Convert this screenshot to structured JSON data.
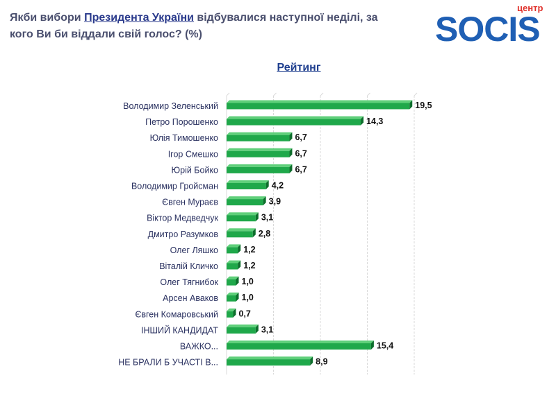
{
  "header": {
    "question_pre": "Якби вибори ",
    "question_link": "Президента України",
    "question_post": " відбувалися наступної неділі, за кого Ви би віддали свій голос? (%)"
  },
  "logo": {
    "small_text": "центр",
    "brand_text": "SOCIS",
    "colors": {
      "brand": "#1f5fb4",
      "accent": "#e0312b"
    }
  },
  "chart_data": {
    "type": "bar",
    "orientation": "horizontal",
    "title": "Рейтинг",
    "categories": [
      "Володимир Зеленський",
      "Петро Порошенко",
      "Юлія Тимошенко",
      "Ігор Смешко",
      "Юрій Бойко",
      "Володимир Гройсман",
      "Євген Мураєв",
      "Віктор Медведчук",
      "Дмитро Разумков",
      "Олег Ляшко",
      "Віталій Кличко",
      "Олег Тягнибок",
      "Арсен Аваков",
      "Євген Комаровський",
      "ІНШИЙ КАНДИДАТ",
      "ВАЖКО...",
      "НЕ БРАЛИ Б УЧАСТІ В..."
    ],
    "values": [
      19.5,
      14.3,
      6.7,
      6.7,
      6.7,
      4.2,
      3.9,
      3.1,
      2.8,
      1.2,
      1.2,
      1.0,
      1.0,
      0.7,
      3.1,
      15.4,
      8.9
    ],
    "value_labels": [
      "19,5",
      "14,3",
      "6,7",
      "6,7",
      "6,7",
      "4,2",
      "3,9",
      "3,1",
      "2,8",
      "1,2",
      "1,2",
      "1,0",
      "1,0",
      "0,7",
      "3,1",
      "15,4",
      "8,9"
    ],
    "xlim": [
      0,
      20
    ],
    "grid": true,
    "colors": {
      "bar": "#1fa84a",
      "bar_dark": "#0d6e2c",
      "grid": "#d9d9d9"
    }
  }
}
